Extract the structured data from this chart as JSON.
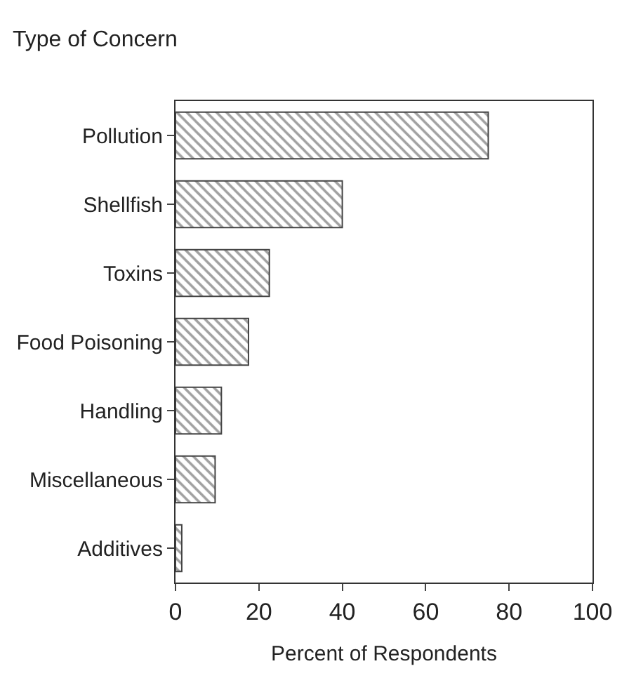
{
  "chart_data": {
    "type": "bar",
    "orientation": "horizontal",
    "title": "Type of Concern",
    "xlabel": "Percent of Respondents",
    "categories": [
      "Pollution",
      "Shellfish",
      "Toxins",
      "Food Poisoning",
      "Handling",
      "Miscellaneous",
      "Additives"
    ],
    "values": [
      75,
      40,
      22.5,
      17.5,
      11,
      9.5,
      1.5
    ],
    "color": "#444444",
    "xlim": [
      0,
      100
    ],
    "xticks": [
      0,
      20,
      40,
      60,
      80,
      100
    ]
  }
}
